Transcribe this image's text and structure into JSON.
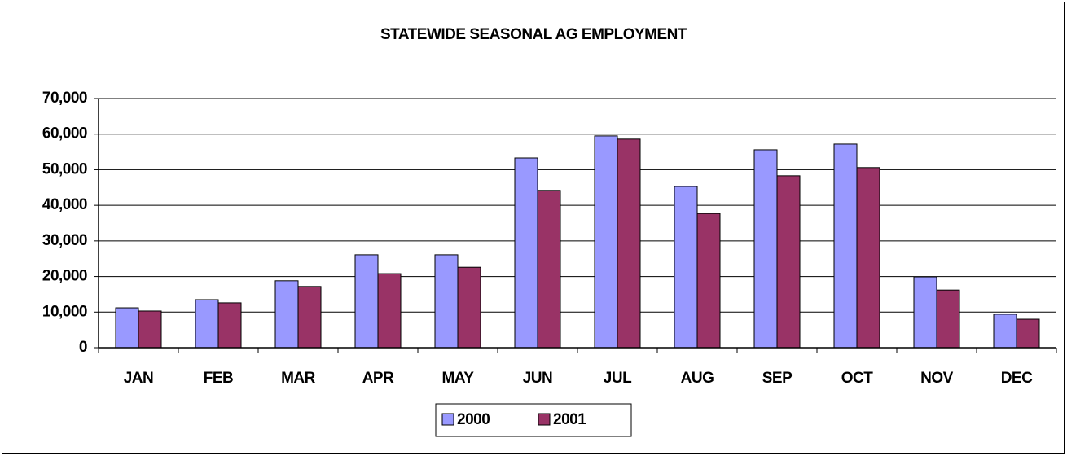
{
  "chart_data": {
    "type": "bar",
    "title": "STATEWIDE SEASONAL AG EMPLOYMENT",
    "categories": [
      "JAN",
      "FEB",
      "MAR",
      "APR",
      "MAY",
      "JUN",
      "JUL",
      "AUG",
      "SEP",
      "OCT",
      "NOV",
      "DEC"
    ],
    "series": [
      {
        "name": "2000",
        "color": "#9999ff",
        "values": [
          11200,
          13500,
          18800,
          26100,
          26100,
          53300,
          59500,
          45300,
          55600,
          57200,
          19900,
          9400
        ]
      },
      {
        "name": "2001",
        "color": "#993366",
        "values": [
          10300,
          12600,
          17200,
          20800,
          22600,
          44200,
          58600,
          37700,
          48300,
          50600,
          16200,
          8000
        ]
      }
    ],
    "ylim": [
      0,
      70000
    ],
    "yticks": [
      0,
      {
        "value": 10000,
        "label": "10,000"
      },
      {
        "value": 20000,
        "label": "20,000"
      },
      {
        "value": 30000,
        "label": "30,000"
      },
      {
        "value": 40000,
        "label": "40,000"
      },
      {
        "value": 50000,
        "label": "50,000"
      },
      {
        "value": 60000,
        "label": "60,000"
      },
      {
        "value": 70000,
        "label": "70,000"
      }
    ],
    "grid": true,
    "legend": "bottom"
  }
}
